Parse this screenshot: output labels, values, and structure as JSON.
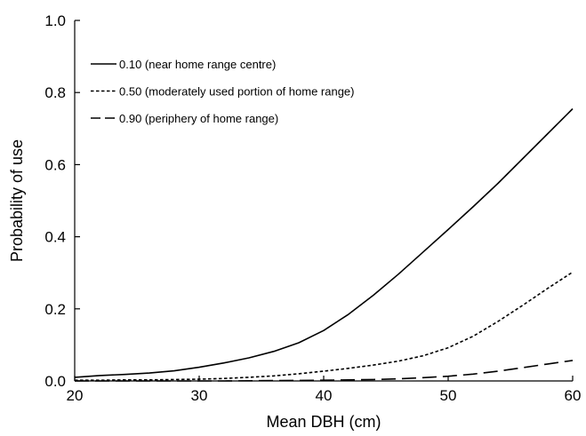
{
  "chart_data": {
    "type": "line",
    "title": "",
    "xlabel": "Mean DBH (cm)",
    "ylabel": "Probability of use",
    "xlim": [
      20,
      60
    ],
    "ylim": [
      0,
      1.0
    ],
    "x_ticks": [
      "20",
      "30",
      "40",
      "50",
      "60"
    ],
    "y_ticks": [
      "0.0",
      "0.2",
      "0.4",
      "0.6",
      "0.8",
      "1.0"
    ],
    "grid": false,
    "legend_position": "top-left",
    "series": [
      {
        "name": "0.10 (near home range centre)",
        "line_style": "solid",
        "x": [
          20,
          22,
          24,
          26,
          28,
          30,
          32,
          34,
          36,
          38,
          40,
          42,
          44,
          46,
          48,
          50,
          52,
          54,
          56,
          58,
          60
        ],
        "y": [
          0.01,
          0.015,
          0.018,
          0.022,
          0.028,
          0.038,
          0.05,
          0.064,
          0.082,
          0.106,
          0.14,
          0.185,
          0.238,
          0.296,
          0.358,
          0.42,
          0.483,
          0.548,
          0.617,
          0.686,
          0.755
        ]
      },
      {
        "name": "0.50 (moderately used portion of home range)",
        "line_style": "dashed",
        "x": [
          20,
          22,
          24,
          26,
          28,
          30,
          32,
          34,
          36,
          38,
          40,
          42,
          44,
          46,
          48,
          50,
          52,
          54,
          56,
          58,
          60
        ],
        "y": [
          0.002,
          0.002,
          0.003,
          0.003,
          0.004,
          0.005,
          0.007,
          0.01,
          0.014,
          0.02,
          0.027,
          0.035,
          0.044,
          0.055,
          0.07,
          0.092,
          0.124,
          0.165,
          0.21,
          0.257,
          0.302
        ]
      },
      {
        "name": "0.90 (periphery of home range)",
        "line_style": "long-dash",
        "x": [
          20,
          24,
          28,
          32,
          36,
          40,
          42,
          44,
          46,
          48,
          50,
          52,
          54,
          56,
          58,
          60
        ],
        "y": [
          0.0,
          0.0,
          0.0,
          0.0,
          0.001,
          0.002,
          0.003,
          0.004,
          0.006,
          0.009,
          0.013,
          0.019,
          0.027,
          0.037,
          0.047,
          0.057
        ]
      }
    ]
  }
}
